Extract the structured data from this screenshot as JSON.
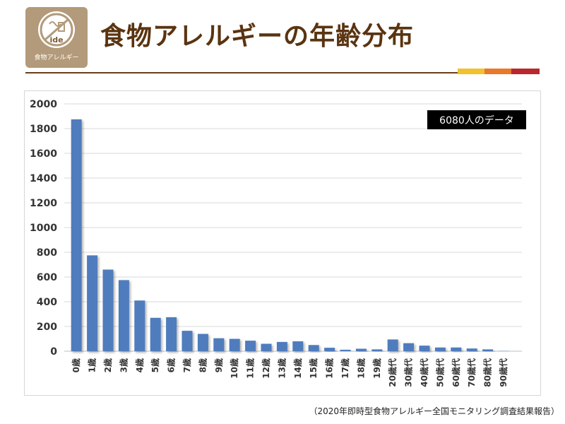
{
  "header": {
    "title": "食物アレルギーの年齢分布",
    "logo_text": "食物アレルギー",
    "logo_mark": "ide"
  },
  "colors": {
    "bar": "#4f7bbd",
    "title": "#5a3410",
    "rule": "#6b3d18",
    "stripe_yellow": "#f2c12e",
    "stripe_orange": "#e8792a",
    "stripe_red": "#b8282c",
    "logo_bg": "#b29a7a"
  },
  "annotation": "6080人のデータ",
  "footnote": "（2020年即時型食物アレルギー全国モニタリング調査結果報告）",
  "chart_data": {
    "type": "bar",
    "title": "",
    "xlabel": "",
    "ylabel": "",
    "ylim": [
      0,
      2000
    ],
    "yticks": [
      0,
      200,
      400,
      600,
      800,
      1000,
      1200,
      1400,
      1600,
      1800,
      2000
    ],
    "grid": true,
    "legend": "none",
    "categories": [
      "0歳",
      "1歳",
      "2歳",
      "3歳",
      "4歳",
      "5歳",
      "6歳",
      "7歳",
      "8歳",
      "9歳",
      "10歳",
      "11歳",
      "12歳",
      "13歳",
      "14歳",
      "15歳",
      "16歳",
      "17歳",
      "18歳",
      "19歳",
      "20歳代",
      "30歳代",
      "40歳代",
      "50歳代",
      "60歳代",
      "70歳代",
      "80歳代",
      "90歳代"
    ],
    "values": [
      1875,
      775,
      660,
      575,
      410,
      270,
      275,
      165,
      140,
      105,
      100,
      85,
      60,
      75,
      80,
      50,
      28,
      12,
      20,
      15,
      95,
      65,
      45,
      30,
      30,
      22,
      15,
      2
    ]
  }
}
